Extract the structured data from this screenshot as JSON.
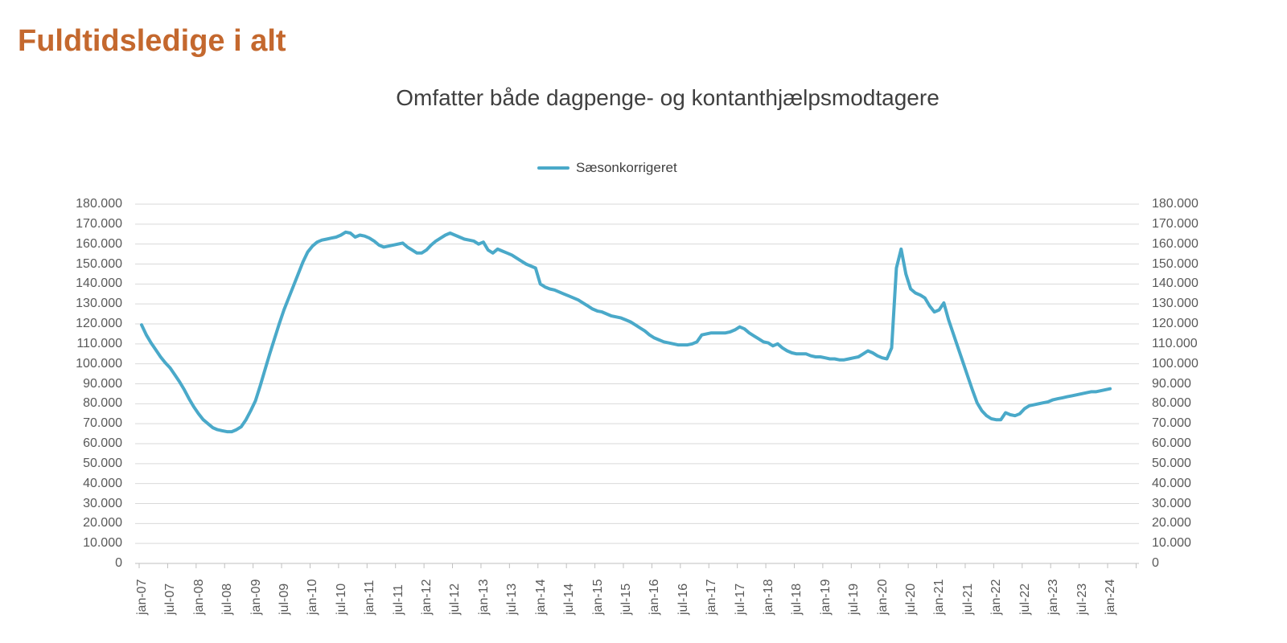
{
  "page": {
    "title": "Fuldtidsledige i alt"
  },
  "colors": {
    "title_accent": "#C4682E",
    "subtitle_text": "#3F3F3F",
    "axis_label": "#595959",
    "gridline": "#D9D9D9",
    "axis_line": "#BFBFBF",
    "series_line": "#4AA9C9"
  },
  "legend": {
    "items": [
      {
        "label": "Sæsonkorrigeret",
        "color": "#4AA9C9"
      }
    ]
  },
  "chart_data": {
    "type": "line",
    "title": "Omfatter både dagpenge- og kontanthjælpsmodtagere",
    "xlabel": "",
    "ylabel": "",
    "x_start": "jan-07",
    "x_end": "jan-24",
    "x_freq": "monthly",
    "x_tick_every": 6,
    "x_tick_labels": [
      "jan-07",
      "jul-07",
      "jan-08",
      "jul-08",
      "jan-09",
      "jul-09",
      "jan-10",
      "jul-10",
      "jan-11",
      "jul-11",
      "jan-12",
      "jul-12",
      "jan-13",
      "jul-13",
      "jan-14",
      "jul-14",
      "jan-15",
      "jul-15",
      "jan-16",
      "jul-16",
      "jan-17",
      "jul-17",
      "jan-18",
      "jul-18",
      "jan-19",
      "jul-19",
      "jan-20",
      "jul-20",
      "jan-21",
      "jul-21",
      "jan-22",
      "jul-22",
      "jan-23",
      "jul-23",
      "jan-24"
    ],
    "ylim": [
      0,
      180000
    ],
    "y_tick_step": 10000,
    "y_tick_labels_top_to_bottom": [
      "180.000",
      "170.000",
      "160.000",
      "150.000",
      "140.000",
      "130.000",
      "120.000",
      "110.000",
      "100.000",
      "90.000",
      "80.000",
      "70.000",
      "60.000",
      "50.000",
      "40.000",
      "30.000",
      "20.000",
      "10.000",
      "0"
    ],
    "y_axis_sides": [
      "left",
      "right"
    ],
    "grid": "horizontal",
    "legend_position": "top-center",
    "series": [
      {
        "name": "Sæsonkorrigeret",
        "color": "#4AA9C9",
        "values": [
          119500,
          114500,
          110500,
          107000,
          103500,
          100500,
          98000,
          94500,
          91000,
          87000,
          82500,
          78500,
          75000,
          72000,
          70000,
          68000,
          67000,
          66500,
          66000,
          66000,
          67000,
          68500,
          72000,
          76500,
          81500,
          89000,
          97000,
          105000,
          112500,
          120000,
          127000,
          133000,
          139000,
          145000,
          151000,
          156000,
          159000,
          161000,
          162000,
          162500,
          163000,
          163500,
          164500,
          166000,
          165500,
          163500,
          164500,
          164000,
          163000,
          161500,
          159500,
          158500,
          159000,
          159500,
          160000,
          160500,
          158500,
          157000,
          155500,
          155500,
          157000,
          159500,
          161500,
          163000,
          164500,
          165500,
          164500,
          163500,
          162500,
          162000,
          161500,
          160000,
          161000,
          157000,
          155500,
          157500,
          156500,
          155500,
          154500,
          153000,
          151500,
          150000,
          149000,
          148000,
          140000,
          138500,
          137500,
          137000,
          136000,
          135000,
          134000,
          133000,
          132000,
          130500,
          129000,
          127500,
          126500,
          126000,
          125000,
          124000,
          123500,
          123000,
          122000,
          121000,
          119500,
          118000,
          116500,
          114500,
          113000,
          112000,
          111000,
          110500,
          110000,
          109500,
          109500,
          109500,
          110000,
          111000,
          114500,
          115000,
          115500,
          115500,
          115500,
          115500,
          116000,
          117000,
          118500,
          117500,
          115500,
          114000,
          112500,
          111000,
          110500,
          109000,
          110000,
          108000,
          106500,
          105500,
          105000,
          105000,
          105000,
          104000,
          103500,
          103500,
          103000,
          102500,
          102500,
          102000,
          102000,
          102500,
          103000,
          103500,
          105000,
          106500,
          105500,
          104000,
          103000,
          102500,
          108000,
          148000,
          157500,
          145000,
          137500,
          135500,
          134500,
          133000,
          129000,
          126000,
          127000,
          130500,
          122000,
          115000,
          108000,
          101000,
          94000,
          87000,
          80500,
          76500,
          74000,
          72500,
          72000,
          72000,
          75500,
          74500,
          74000,
          75000,
          77500,
          79000,
          79500,
          80000,
          80500,
          81000,
          82000,
          82500,
          83000,
          83500,
          84000,
          84500,
          85000,
          85500,
          86000,
          86000,
          86500,
          87000,
          87500
        ]
      }
    ]
  }
}
